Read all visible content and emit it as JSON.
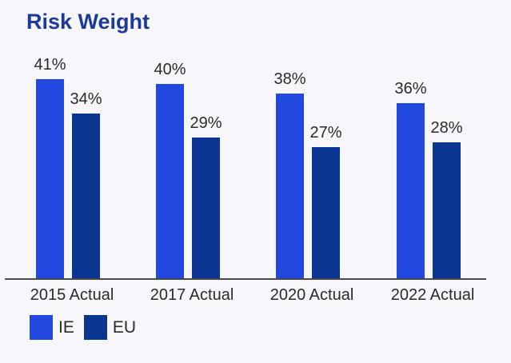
{
  "page": {
    "background_color": "#F7F6FA"
  },
  "chart_data": {
    "type": "bar",
    "title": "Risk Weight",
    "title_color": "#1B3A9B",
    "categories": [
      "2015 Actual",
      "2017 Actual",
      "2020 Actual",
      "2022 Actual"
    ],
    "series": [
      {
        "name": "IE",
        "color": "#2149DF",
        "values": [
          41,
          40,
          38,
          36
        ]
      },
      {
        "name": "EU",
        "color": "#0A3591",
        "values": [
          34,
          29,
          27,
          28
        ]
      }
    ],
    "value_suffix": "%",
    "ylim": [
      0,
      45
    ],
    "grid": false,
    "legend_position": "bottom-left",
    "axis_color": "#4A4A4A",
    "label_color": "#2B2B2B"
  }
}
